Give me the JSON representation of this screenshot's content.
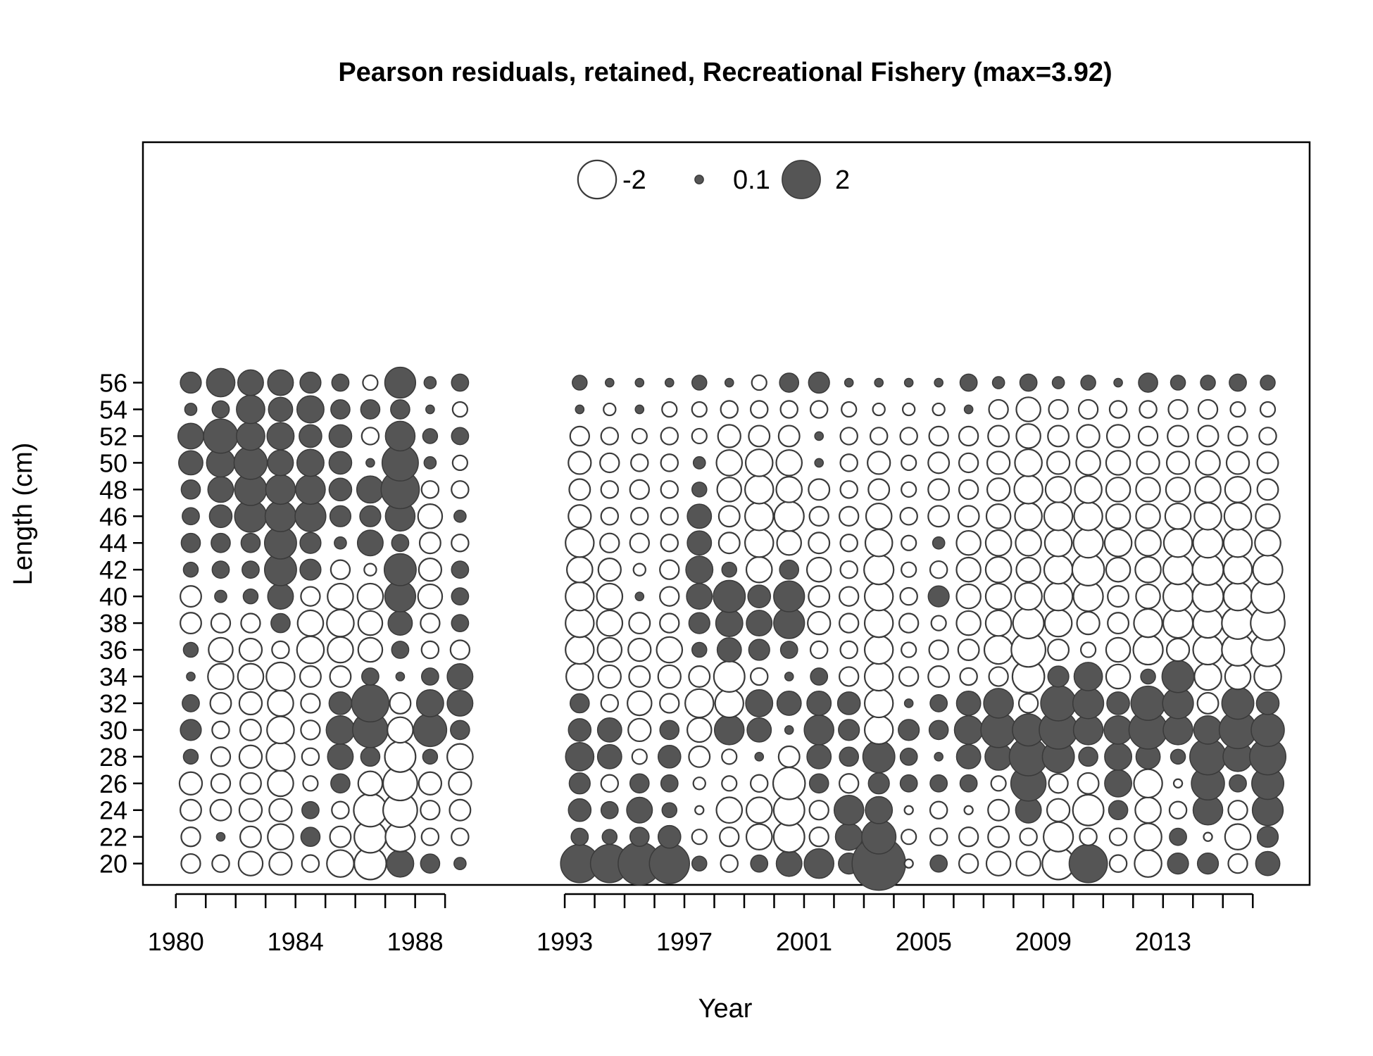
{
  "chart_data": {
    "type": "scatter",
    "subtype": "bubble",
    "title": "Pearson residuals, retained, Recreational Fishery (max=3.92)",
    "xlabel": "Year",
    "ylabel": "Length (cm)",
    "xlim": [
      1978.9,
      2017.9
    ],
    "ylim": [
      18.4,
      74.0
    ],
    "x_ticks": [
      1980,
      1981,
      1982,
      1983,
      1984,
      1985,
      1986,
      1987,
      1988,
      1989,
      1993,
      1994,
      1995,
      1996,
      1997,
      1998,
      1999,
      2000,
      2001,
      2002,
      2003,
      2004,
      2005,
      2006,
      2007,
      2008,
      2009,
      2010,
      2011,
      2012,
      2013,
      2014,
      2015,
      2016
    ],
    "x_tick_labels": [
      "1980",
      "1984",
      "1988",
      "1993",
      "1997",
      "2001",
      "2005",
      "2009",
      "2013"
    ],
    "y_tick_labels": [
      "20",
      "22",
      "24",
      "26",
      "28",
      "30",
      "32",
      "34",
      "36",
      "38",
      "40",
      "42",
      "44",
      "46",
      "48",
      "50",
      "52",
      "54",
      "56"
    ],
    "grid": false,
    "legend": {
      "position": "top-center",
      "entries": [
        {
          "label": "-2",
          "value": -2
        },
        {
          "label": "0.1",
          "value": 0.1
        },
        {
          "label": "2",
          "value": 2
        }
      ]
    },
    "colors": {
      "positive_fill": "#555555",
      "negative_fill": "#ffffff",
      "stroke": "#3a3a3a"
    },
    "max_abs_residual": 3.92,
    "lengths": [
      20,
      22,
      24,
      26,
      28,
      30,
      32,
      34,
      36,
      38,
      40,
      42,
      44,
      46,
      48,
      50,
      52,
      54,
      56
    ],
    "series": [
      {
        "year": 1980.5,
        "residuals": [
          -0.5,
          -0.5,
          -0.6,
          -0.7,
          0.3,
          0.6,
          0.4,
          0.1,
          0.3,
          -0.6,
          -0.6,
          0.3,
          0.5,
          0.4,
          0.5,
          0.8,
          0.9,
          0.2,
          0.6
        ]
      },
      {
        "year": 1981.5,
        "residuals": [
          -0.4,
          0.1,
          -0.6,
          -0.5,
          -0.5,
          -0.4,
          -0.6,
          -0.9,
          -0.8,
          -0.5,
          0.2,
          0.4,
          0.5,
          0.7,
          0.9,
          1.1,
          1.6,
          0.4,
          1.1
        ]
      },
      {
        "year": 1982.5,
        "residuals": [
          -0.8,
          -0.6,
          -0.7,
          -0.6,
          -0.7,
          -0.6,
          -0.7,
          -0.9,
          -0.7,
          -0.5,
          0.3,
          0.4,
          0.5,
          1.4,
          1.4,
          1.5,
          1.1,
          1.1,
          0.9
        ]
      },
      {
        "year": 1983.5,
        "residuals": [
          -0.7,
          -0.9,
          -0.7,
          -0.9,
          -1.1,
          -1.0,
          -0.9,
          -1.1,
          -0.4,
          0.5,
          0.9,
          1.4,
          1.4,
          1.3,
          1.2,
          0.9,
          1.0,
          0.8,
          0.9
        ]
      },
      {
        "year": 1984.5,
        "residuals": [
          -0.4,
          0.5,
          0.4,
          -0.3,
          -0.4,
          -0.5,
          -0.5,
          -0.6,
          -1.0,
          -0.9,
          -0.5,
          0.6,
          0.6,
          1.3,
          1.2,
          1.0,
          0.7,
          1.0,
          0.6
        ]
      },
      {
        "year": 1985.5,
        "residuals": [
          -1.0,
          -0.6,
          -0.4,
          0.5,
          0.9,
          1.1,
          0.7,
          -0.6,
          -0.9,
          -1.0,
          -0.9,
          -0.5,
          0.2,
          0.6,
          0.7,
          0.7,
          0.7,
          0.5,
          0.4
        ]
      },
      {
        "year": 1986.5,
        "residuals": [
          -1.4,
          -1.4,
          -1.5,
          -0.8,
          0.5,
          1.7,
          1.9,
          0.4,
          -0.8,
          -0.8,
          -0.9,
          -0.2,
          0.9,
          0.6,
          1.0,
          0.1,
          -0.4,
          0.5,
          -0.3
        ]
      },
      {
        "year": 1987.5,
        "residuals": [
          1.0,
          -1.2,
          -1.6,
          -1.6,
          -1.3,
          -0.9,
          -0.6,
          0.1,
          0.4,
          0.8,
          1.3,
          1.4,
          0.4,
          1.2,
          2.0,
          1.8,
          1.2,
          0.5,
          1.3
        ]
      },
      {
        "year": 1988.5,
        "residuals": [
          0.5,
          -0.4,
          -0.5,
          -0.7,
          0.3,
          1.5,
          1.0,
          0.4,
          -0.4,
          -0.5,
          -0.8,
          -0.7,
          -0.6,
          -0.8,
          -0.4,
          0.2,
          0.3,
          0.1,
          0.2
        ]
      },
      {
        "year": 1989.5,
        "residuals": [
          0.2,
          -0.4,
          -0.6,
          -0.7,
          -0.9,
          0.5,
          0.9,
          0.9,
          -0.5,
          0.4,
          0.4,
          0.4,
          -0.4,
          0.2,
          -0.4,
          -0.3,
          0.4,
          -0.3,
          0.4
        ]
      },
      {
        "year": 1993.5,
        "residuals": [
          2.0,
          0.4,
          0.7,
          0.6,
          1.1,
          0.7,
          0.5,
          -1.0,
          -1.1,
          -1.1,
          -1.1,
          -0.9,
          -1.1,
          -0.7,
          -0.6,
          -0.7,
          -0.5,
          0.1,
          0.3
        ]
      },
      {
        "year": 1994.5,
        "residuals": [
          2.0,
          0.3,
          0.4,
          -0.4,
          0.8,
          0.8,
          -0.4,
          -0.7,
          -0.8,
          -0.9,
          -0.9,
          -0.7,
          -0.5,
          -0.4,
          -0.4,
          -0.5,
          -0.4,
          -0.2,
          0.1
        ]
      },
      {
        "year": 1995.5,
        "residuals": [
          2.5,
          0.5,
          0.9,
          0.5,
          -0.3,
          -0.7,
          -0.8,
          -0.6,
          -0.7,
          -0.6,
          0.1,
          -0.2,
          -0.5,
          -0.4,
          -0.5,
          -0.4,
          -0.3,
          0.1,
          0.1
        ]
      },
      {
        "year": 1996.5,
        "residuals": [
          2.2,
          0.7,
          0.3,
          0.4,
          0.7,
          0.5,
          -0.5,
          -0.7,
          -0.9,
          -0.5,
          -0.5,
          -0.5,
          -0.4,
          -0.4,
          -0.4,
          -0.4,
          -0.4,
          -0.3,
          0.1
        ]
      },
      {
        "year": 1997.5,
        "residuals": [
          0.3,
          -0.3,
          -0.1,
          -0.2,
          -0.6,
          -0.8,
          -1.1,
          -0.6,
          0.3,
          0.6,
          0.9,
          1.0,
          0.8,
          0.8,
          0.3,
          0.2,
          -0.3,
          -0.3,
          0.3
        ]
      },
      {
        "year": 1998.5,
        "residuals": [
          -0.4,
          -0.5,
          -0.9,
          -0.3,
          -0.3,
          1.2,
          -1.1,
          -1.3,
          0.8,
          1.0,
          1.4,
          0.3,
          -0.6,
          -0.6,
          -0.8,
          -0.9,
          -0.7,
          -0.4,
          0.1
        ]
      },
      {
        "year": 1999.5,
        "residuals": [
          0.4,
          -0.9,
          -0.9,
          -0.4,
          0.1,
          0.8,
          1.0,
          -0.4,
          0.6,
          0.9,
          0.7,
          -0.9,
          -1.1,
          -1.1,
          -1.1,
          -1.0,
          -0.6,
          -0.4,
          -0.3
        ]
      },
      {
        "year": 2000.5,
        "residuals": [
          0.9,
          -1.3,
          -1.3,
          -1.4,
          -0.6,
          0.1,
          0.8,
          0.1,
          0.4,
          1.3,
          1.3,
          0.5,
          -0.8,
          -1.2,
          -0.9,
          -0.9,
          -0.6,
          -0.4,
          0.5
        ]
      },
      {
        "year": 2001.5,
        "residuals": [
          1.2,
          -0.5,
          -0.5,
          0.5,
          0.8,
          1.2,
          0.8,
          0.4,
          -0.4,
          -0.7,
          -0.6,
          -0.8,
          -0.6,
          -0.5,
          -0.6,
          0.1,
          0.1,
          -0.4,
          0.6
        ]
      },
      {
        "year": 2002.5,
        "residuals": [
          0.6,
          1.0,
          1.2,
          -0.5,
          0.5,
          0.6,
          0.7,
          -0.5,
          -0.4,
          -0.5,
          -0.5,
          -0.4,
          -0.4,
          -0.5,
          -0.4,
          -0.4,
          -0.4,
          -0.3,
          0.1
        ]
      },
      {
        "year": 2003.5,
        "residuals": [
          3.92,
          1.6,
          1.0,
          0.6,
          1.4,
          -1.1,
          -1.1,
          -1.1,
          -1.1,
          -1.1,
          -1.1,
          -1.2,
          -1.0,
          -0.9,
          -0.6,
          -0.7,
          -0.4,
          -0.2,
          0.1
        ]
      },
      {
        "year": 2004.5,
        "residuals": [
          -0.1,
          -0.3,
          -0.1,
          0.4,
          0.4,
          0.6,
          0.1,
          -0.5,
          -0.3,
          -0.5,
          -0.4,
          -0.3,
          -0.3,
          -0.4,
          -0.3,
          -0.3,
          -0.4,
          -0.2,
          0.1
        ]
      },
      {
        "year": 2005.5,
        "residuals": [
          0.4,
          -0.4,
          -0.4,
          0.4,
          0.1,
          0.5,
          0.4,
          -0.6,
          -0.5,
          -0.3,
          0.6,
          -0.4,
          0.2,
          -0.6,
          -0.6,
          -0.6,
          -0.5,
          -0.2,
          0.1
        ]
      },
      {
        "year": 2006.5,
        "residuals": [
          -0.5,
          -0.5,
          -0.1,
          0.4,
          0.8,
          1.1,
          0.8,
          -0.4,
          -0.6,
          -0.8,
          -0.8,
          -0.8,
          -0.8,
          -0.6,
          -0.5,
          -0.5,
          -0.5,
          0.1,
          0.4
        ]
      },
      {
        "year": 2007.5,
        "residuals": [
          -0.8,
          -0.6,
          -0.6,
          -0.3,
          1.0,
          1.7,
          1.2,
          -0.5,
          -1.1,
          -0.9,
          -0.9,
          -0.9,
          -0.9,
          -0.8,
          -0.7,
          -0.7,
          -0.6,
          -0.5,
          0.2
        ]
      },
      {
        "year": 2008.5,
        "residuals": [
          -0.8,
          -0.4,
          0.9,
          1.7,
          2.0,
          1.4,
          -0.5,
          -1.4,
          -1.6,
          -1.3,
          -1.0,
          -0.8,
          -0.9,
          -1.0,
          -1.1,
          -1.0,
          -0.8,
          -0.8,
          0.4
        ]
      },
      {
        "year": 2009.5,
        "residuals": [
          -1.4,
          -1.2,
          -0.7,
          -0.5,
          1.4,
          2.0,
          1.7,
          0.6,
          -0.6,
          -1.0,
          -1.1,
          -1.1,
          -1.0,
          -1.1,
          -0.9,
          -0.7,
          -0.6,
          -0.5,
          0.2
        ]
      },
      {
        "year": 2010.5,
        "residuals": [
          2.0,
          -0.4,
          -1.3,
          -0.6,
          0.5,
          1.2,
          1.3,
          1.1,
          -0.3,
          -0.7,
          -1.2,
          -1.4,
          -1.2,
          -1.1,
          -1.0,
          -0.8,
          -0.7,
          -0.5,
          0.3
        ]
      },
      {
        "year": 2011.5,
        "residuals": [
          -0.4,
          -0.4,
          0.5,
          1.0,
          1.0,
          1.1,
          0.7,
          -0.8,
          -0.8,
          -0.6,
          -0.6,
          -0.8,
          -1.0,
          -0.8,
          -0.8,
          -0.8,
          -0.7,
          -0.4,
          0.1
        ]
      },
      {
        "year": 2012.5,
        "residuals": [
          -1.0,
          -1.0,
          -0.9,
          -1.1,
          0.8,
          2.0,
          1.6,
          0.3,
          -1.2,
          -1.1,
          -0.8,
          -0.9,
          -0.9,
          -0.8,
          -0.8,
          -0.7,
          -0.5,
          -0.4,
          0.5
        ]
      },
      {
        "year": 2013.5,
        "residuals": [
          0.6,
          0.4,
          -0.4,
          -0.1,
          0.3,
          1.2,
          1.3,
          1.4,
          -0.7,
          -1.2,
          -1.2,
          -1.2,
          -1.1,
          -0.9,
          -0.8,
          -0.7,
          -0.6,
          -0.5,
          0.3
        ]
      },
      {
        "year": 2014.5,
        "residuals": [
          0.6,
          -0.1,
          1.2,
          1.5,
          1.8,
          1.1,
          -0.6,
          -1.0,
          -1.2,
          -1.2,
          -1.3,
          -1.3,
          -1.2,
          -1.0,
          -0.9,
          -0.8,
          -0.6,
          -0.5,
          0.3
        ]
      },
      {
        "year": 2015.5,
        "residuals": [
          -0.5,
          -0.9,
          -0.5,
          0.4,
          1.2,
          1.9,
          1.4,
          -0.9,
          -1.4,
          -1.4,
          -1.1,
          -1.1,
          -1.1,
          -1.0,
          -0.9,
          -0.7,
          -0.5,
          -0.3,
          0.4
        ]
      },
      {
        "year": 2016.5,
        "residuals": [
          0.8,
          0.6,
          1.3,
          1.4,
          1.8,
          1.5,
          0.7,
          -1.0,
          -1.5,
          -1.6,
          -1.5,
          -1.2,
          -0.9,
          -0.8,
          -0.6,
          -0.6,
          -0.4,
          -0.3,
          0.3
        ]
      }
    ]
  }
}
